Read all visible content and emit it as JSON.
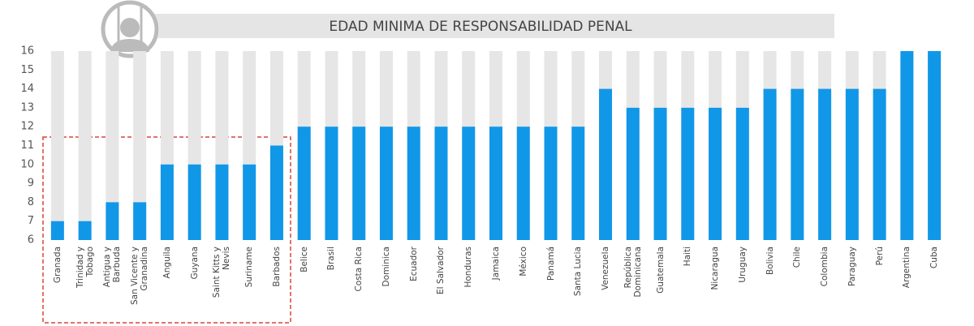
{
  "chart_data": {
    "type": "bar",
    "title": "EDAD MINIMA DE RESPONSABILIDAD PENAL",
    "categories": [
      "Granada",
      "Trinidad y\nTobago",
      "Antigua y\nBarbuda",
      "San Vicente y\nGranadina",
      "Anguila",
      "Guyana",
      "Saint Kitts y\nNevis",
      "Suriname",
      "Barbados",
      "Belice",
      "Brasil",
      "Costa Rica",
      "Dominica",
      "Ecuador",
      "El Salvador",
      "Honduras",
      "Jamaica",
      "México",
      "Panamá",
      "Santa Lucia",
      "Venezuela",
      "República\nDominicana",
      "Guatemala",
      "Haiti",
      "Nicaragua",
      "Uruguay",
      "Bolivia",
      "Chile",
      "Colombia",
      "Paraguay",
      "Perú",
      "Argentina",
      "Cuba"
    ],
    "values": [
      7,
      7,
      8,
      8,
      10,
      10,
      10,
      10,
      11,
      12,
      12,
      12,
      12,
      12,
      12,
      12,
      12,
      12,
      12,
      12,
      14,
      13,
      13,
      13,
      13,
      13,
      14,
      14,
      14,
      14,
      14,
      16,
      16
    ],
    "color": "#1197e8",
    "track_color": "#e6e6e6",
    "ylim": [
      6,
      16
    ],
    "yticks": [
      6,
      7,
      8,
      9,
      10,
      11,
      12,
      13,
      14,
      15,
      16
    ]
  }
}
